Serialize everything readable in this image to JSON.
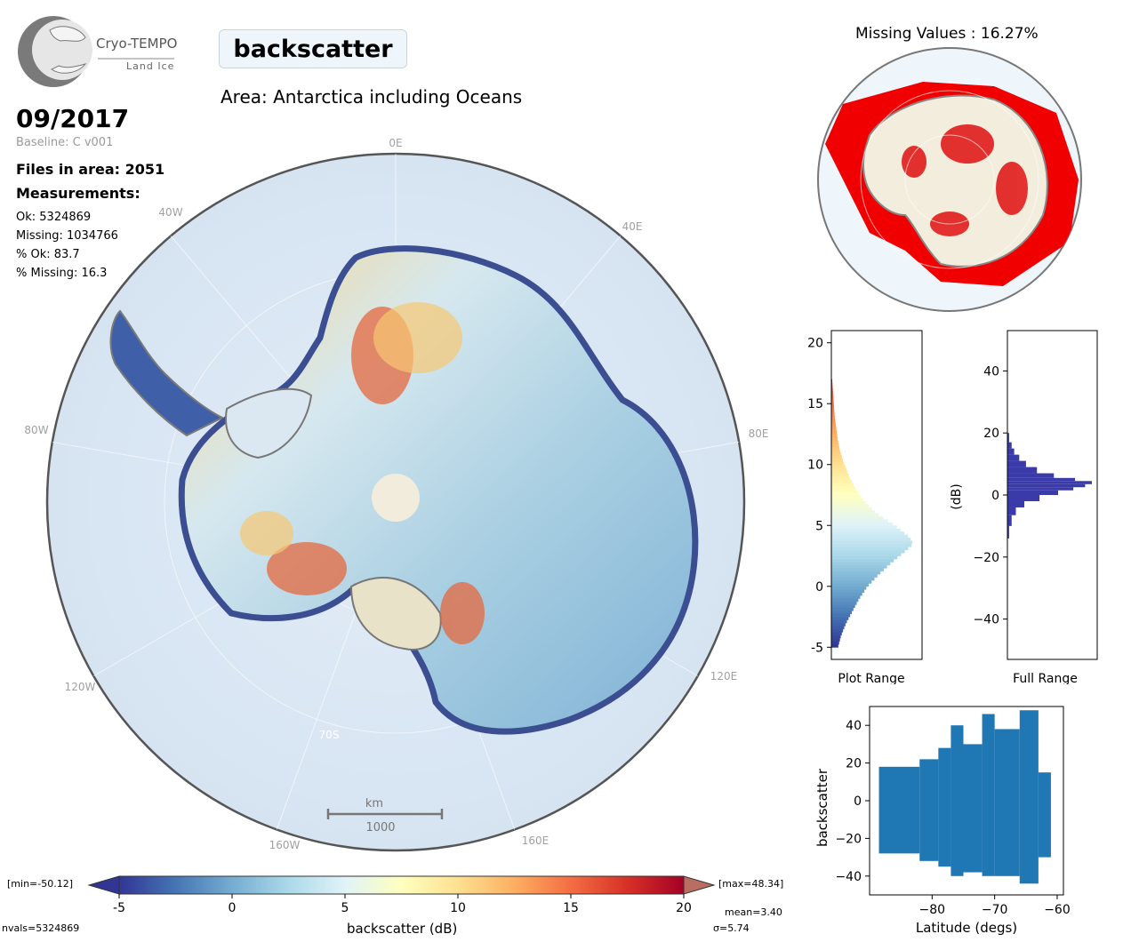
{
  "logo": {
    "name": "Cryo-TEMPO",
    "sub": "Land Ice"
  },
  "title": "backscatter",
  "area": "Area: Antarctica including Oceans",
  "date": "09/2017",
  "baseline": "Baseline: C v001",
  "files": "Files in area: 2051",
  "measurements_heading": "Measurements:",
  "stats": {
    "ok": "Ok: 5324869",
    "missing": "Missing: 1034766",
    "pct_ok": "% Ok: 83.7",
    "pct_missing": "% Missing: 16.3"
  },
  "map": {
    "lon_labels": [
      "0E",
      "40E",
      "80E",
      "120E",
      "160E",
      "160W",
      "120W",
      "80W",
      "40W"
    ],
    "lat_label": "70S",
    "scale_unit": "km",
    "scale_value": "1000"
  },
  "missing_map": {
    "title": "Missing Values : 16.27%"
  },
  "colorbar": {
    "label": "backscatter (dB)",
    "ticks": [
      "-5",
      "0",
      "5",
      "10",
      "15",
      "20"
    ],
    "min_label": "[min=-50.12]",
    "max_label": "[max=48.34]",
    "mean": "mean=3.40",
    "sigma": "σ=5.74",
    "nvals": "nvals=5324869",
    "colors": [
      "#313695",
      "#4575b4",
      "#74add1",
      "#abd9e9",
      "#e0f3f8",
      "#ffffbf",
      "#fee090",
      "#fdae61",
      "#f46d43",
      "#d73027",
      "#a50026"
    ]
  },
  "chart_data": [
    {
      "type": "bar",
      "orientation": "horizontal",
      "xlabel": "Plot Range",
      "ylabel": "",
      "ylim": [
        -6,
        21
      ],
      "yticks": [
        "-5",
        "0",
        "5",
        "10",
        "15",
        "20"
      ],
      "bins_center_db": [
        -5,
        -4,
        -3,
        -2,
        -1,
        0,
        1,
        2,
        3,
        3.5,
        4,
        5,
        6,
        7,
        8,
        9,
        10,
        11,
        12,
        13,
        14,
        15,
        16,
        17
      ],
      "relative_counts": [
        0.08,
        0.12,
        0.18,
        0.26,
        0.34,
        0.44,
        0.58,
        0.74,
        0.92,
        1.0,
        0.96,
        0.78,
        0.55,
        0.4,
        0.3,
        0.22,
        0.16,
        0.11,
        0.08,
        0.06,
        0.04,
        0.03,
        0.02,
        0.01
      ]
    },
    {
      "type": "bar",
      "orientation": "horizontal",
      "xlabel": "Full Range",
      "ylabel": "(dB)",
      "ylim": [
        -53,
        53
      ],
      "yticks": [
        "40",
        "20",
        "0",
        "−20",
        "−40"
      ],
      "bins_center_db": [
        -12,
        -8,
        -5,
        -3,
        -1,
        1,
        2,
        3,
        4,
        5,
        6,
        8,
        10,
        12,
        14,
        16,
        18
      ],
      "relative_counts": [
        0.02,
        0.05,
        0.1,
        0.2,
        0.38,
        0.6,
        0.78,
        0.92,
        1.0,
        0.8,
        0.55,
        0.35,
        0.22,
        0.14,
        0.08,
        0.05,
        0.02
      ],
      "color": "#3a3aa8"
    },
    {
      "type": "scatter",
      "xlabel": "Latitude (degs)",
      "ylabel": "backscatter",
      "xlim": [
        -90,
        -59
      ],
      "ylim": [
        -50,
        50
      ],
      "xticks": [
        "−80",
        "−70",
        "−60"
      ],
      "yticks": [
        "40",
        "20",
        "0",
        "−20",
        "−40"
      ],
      "color": "#1f77b4"
    }
  ]
}
